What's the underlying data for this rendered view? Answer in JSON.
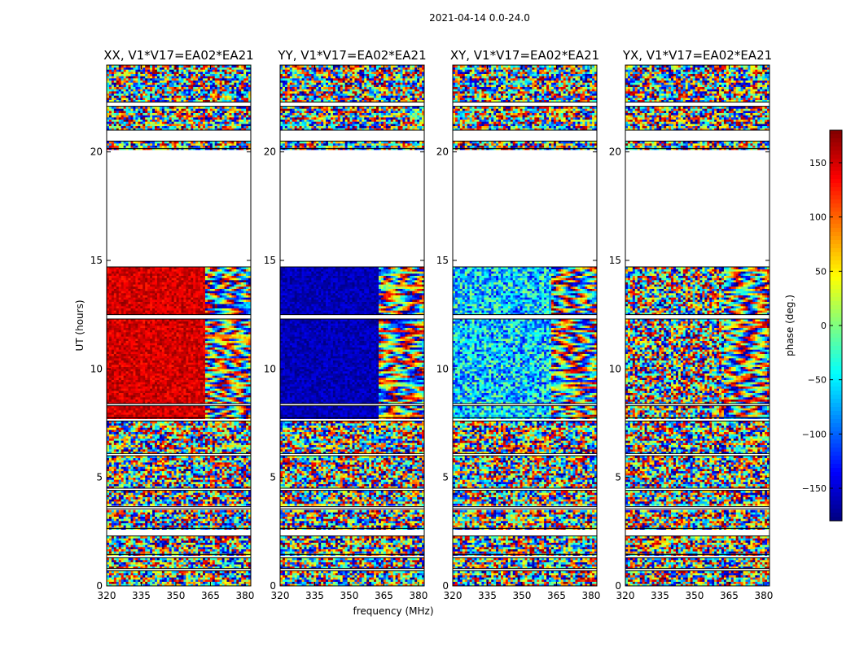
{
  "chart_data": {
    "type": "heatmap",
    "suptitle": "2021-04-14 0.0-24.0",
    "xlabel": "frequency (MHz)",
    "ylabel": "UT (hours)",
    "xlim": [
      320,
      382.5
    ],
    "ylim": [
      0,
      24
    ],
    "xticks": [
      "320",
      "335",
      "350",
      "365",
      "380"
    ],
    "yticks": [
      "0",
      "5",
      "10",
      "15",
      "20"
    ],
    "panels": [
      {
        "title": "XX, V1*V17=EA02*EA21",
        "mode": "XX"
      },
      {
        "title": "YY, V1*V17=EA02*EA21",
        "mode": "YY"
      },
      {
        "title": "XY, V1*V17=EA02*EA21",
        "mode": "XY"
      },
      {
        "title": "YX, V1*V17=EA02*EA21",
        "mode": "YX"
      }
    ],
    "colorbar": {
      "label": "phase (deg.)",
      "range": [
        -180,
        180
      ],
      "ticks": [
        "150",
        "100",
        "50",
        "0",
        "−50",
        "−100",
        "−150"
      ],
      "colormap": "jet"
    },
    "data_segments_ut_hours": [
      [
        0.0,
        0.7
      ],
      [
        0.8,
        1.3
      ],
      [
        1.45,
        2.3
      ],
      [
        2.65,
        3.55
      ],
      [
        3.65,
        4.4
      ],
      [
        4.5,
        6.0
      ],
      [
        6.1,
        7.6
      ],
      [
        7.75,
        8.3
      ],
      [
        8.4,
        12.3
      ],
      [
        12.5,
        14.7
      ],
      [
        20.15,
        20.5
      ],
      [
        21.0,
        22.1
      ],
      [
        22.3,
        24.0
      ]
    ],
    "coherent_channel_edge_mhz": 363
  }
}
